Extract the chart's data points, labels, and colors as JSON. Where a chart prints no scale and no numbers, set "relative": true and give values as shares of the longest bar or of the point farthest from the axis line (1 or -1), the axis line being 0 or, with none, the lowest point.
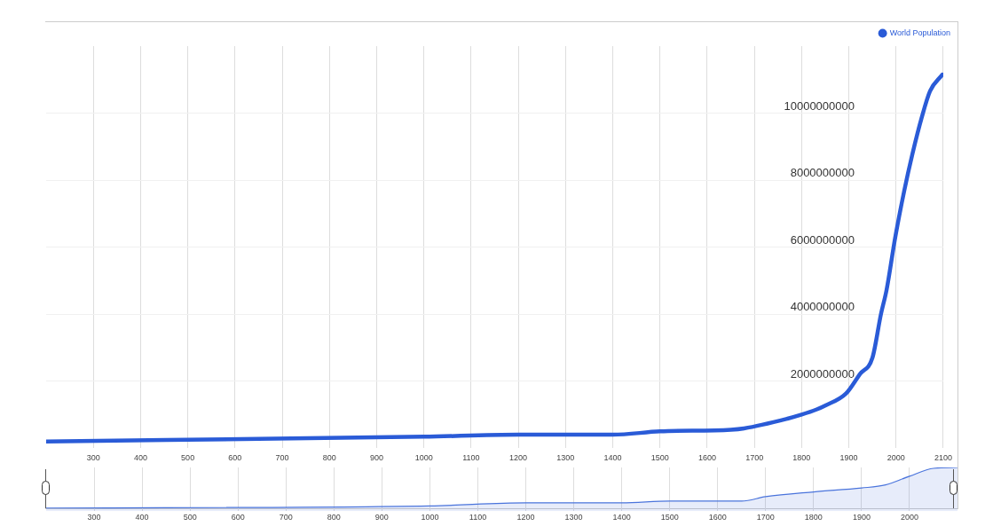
{
  "chart_data": [
    {
      "type": "line",
      "x": [
        200,
        1000,
        1200,
        1400,
        1500,
        1650,
        1678,
        1770,
        1800,
        1831,
        1850,
        1894,
        1924,
        1950,
        1968,
        1980,
        1998,
        2017,
        2035,
        2054,
        2072,
        2098
      ],
      "series": [
        {
          "name": "World Population",
          "color": "#2a5bd7",
          "values": [
            200000000,
            340000000,
            400000000,
            400000000,
            500000000,
            550000000,
            590000000,
            880000000,
            1000000000,
            1150000000,
            1270000000,
            1630000000,
            2220000000,
            2700000000,
            4000000000,
            4730000000,
            6270000000,
            7660000000,
            8800000000,
            9850000000,
            10660000000,
            11150000000
          ]
        }
      ],
      "xlim": [
        200,
        2100
      ],
      "xticks": [
        300,
        400,
        500,
        600,
        700,
        800,
        900,
        1000,
        1100,
        1200,
        1300,
        1400,
        1500,
        1600,
        1700,
        1800,
        1900,
        2000,
        2100
      ],
      "ylim": [
        0,
        12000000000
      ],
      "yticks": [
        2000000000,
        4000000000,
        6000000000,
        8000000000,
        10000000000
      ],
      "grid": true,
      "legend": "top right",
      "marker": "none"
    },
    {
      "type": "area",
      "relative": true,
      "x": [
        200,
        1000,
        1200,
        1400,
        1500,
        1650,
        1700,
        1800,
        1900,
        1950,
        2000,
        2050,
        2100
      ],
      "series": [
        {
          "color": "#4a74dc",
          "values": [
            0.07,
            0.12,
            0.19,
            0.19,
            0.23,
            0.23,
            0.33,
            0.44,
            0.53,
            0.6,
            0.8,
            0.98,
            1
          ]
        }
      ],
      "xlim": [
        200,
        2100
      ],
      "xticks": [
        300,
        400,
        500,
        600,
        700,
        800,
        900,
        1000,
        1100,
        1200,
        1300,
        1400,
        1500,
        1600,
        1700,
        1800,
        1900,
        2000
      ],
      "grid": "x",
      "marker": "none"
    }
  ]
}
